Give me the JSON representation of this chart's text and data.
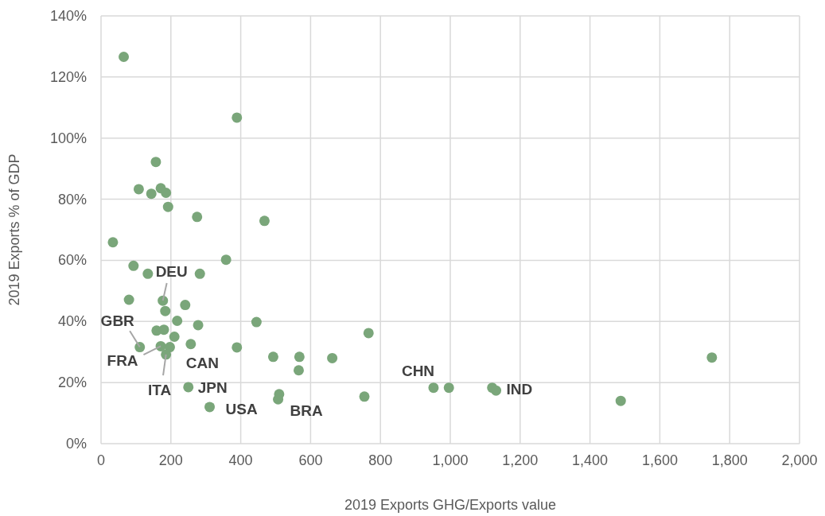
{
  "chart_data": {
    "type": "scatter",
    "xlabel": "2019 Exports GHG/Exports value",
    "ylabel": "2019 Exports % of GDP",
    "series": [
      {
        "color": "#7aa67a",
        "x": [
          65,
          389,
          157,
          108,
          144,
          171,
          186,
          192,
          275,
          468,
          34,
          358,
          93,
          134,
          283,
          80,
          177,
          241,
          184,
          218,
          445,
          278,
          159,
          180,
          210,
          766,
          257,
          111,
          171,
          197,
          186,
          389,
          493,
          568,
          662,
          566,
          250,
          754,
          311,
          510,
          507,
          952,
          996,
          1120,
          1131,
          1488,
          1749
        ],
        "values": [
          126.6,
          106.7,
          92.2,
          83.3,
          81.8,
          83.6,
          82.1,
          77.5,
          74.2,
          72.9,
          65.9,
          60.2,
          58.2,
          55.6,
          55.6,
          47.1,
          46.8,
          45.4,
          43.4,
          40.2,
          39.8,
          38.8,
          37.0,
          37.3,
          35.0,
          36.2,
          32.6,
          31.6,
          31.9,
          31.6,
          29.2,
          31.5,
          28.4,
          28.4,
          28.0,
          24.0,
          18.5,
          15.4,
          12.0,
          16.2,
          14.5,
          18.3,
          18.3,
          18.3,
          17.4,
          14.0,
          28.2
        ]
      }
    ],
    "marker": "circle",
    "grid": true,
    "xlim": [
      0,
      2000
    ],
    "xticks": [
      0,
      200,
      400,
      600,
      800,
      {
        "value": 1000,
        "label": "1,000"
      },
      {
        "value": 1200,
        "label": "1,200"
      },
      {
        "value": 1400,
        "label": "1,400"
      },
      {
        "value": 1600,
        "label": "1,600"
      },
      {
        "value": 1800,
        "label": "1,800"
      },
      {
        "value": 2000,
        "label": "2,000"
      }
    ],
    "ylim": [
      0,
      140
    ],
    "yticks": [
      {
        "value": 0,
        "label": "0%"
      },
      {
        "value": 20,
        "label": "20%"
      },
      {
        "value": 40,
        "label": "40%"
      },
      {
        "value": 60,
        "label": "60%"
      },
      {
        "value": 80,
        "label": "80%"
      },
      {
        "value": 100,
        "label": "100%"
      },
      {
        "value": 120,
        "label": "120%"
      },
      {
        "value": 140,
        "label": "140%"
      }
    ],
    "annotations": [
      {
        "text": "DEU",
        "x": 177,
        "y": 46.8
      },
      {
        "text": "GBR",
        "x": 111,
        "y": 31.6
      },
      {
        "text": "FRA",
        "x": 171,
        "y": 31.9
      },
      {
        "text": "ITA",
        "x": 186,
        "y": 29.2
      },
      {
        "text": "JPN",
        "x": 250,
        "y": 18.5
      },
      {
        "text": "CAN",
        "x": 389,
        "y": 31.5
      },
      {
        "text": "USA",
        "x": 311,
        "y": 12.0
      },
      {
        "text": "BRA",
        "x": 507,
        "y": 14.5
      },
      {
        "text": "CHN",
        "x": 952,
        "y": 18.3
      },
      {
        "text": "IND",
        "x": 1131,
        "y": 17.4
      }
    ]
  }
}
